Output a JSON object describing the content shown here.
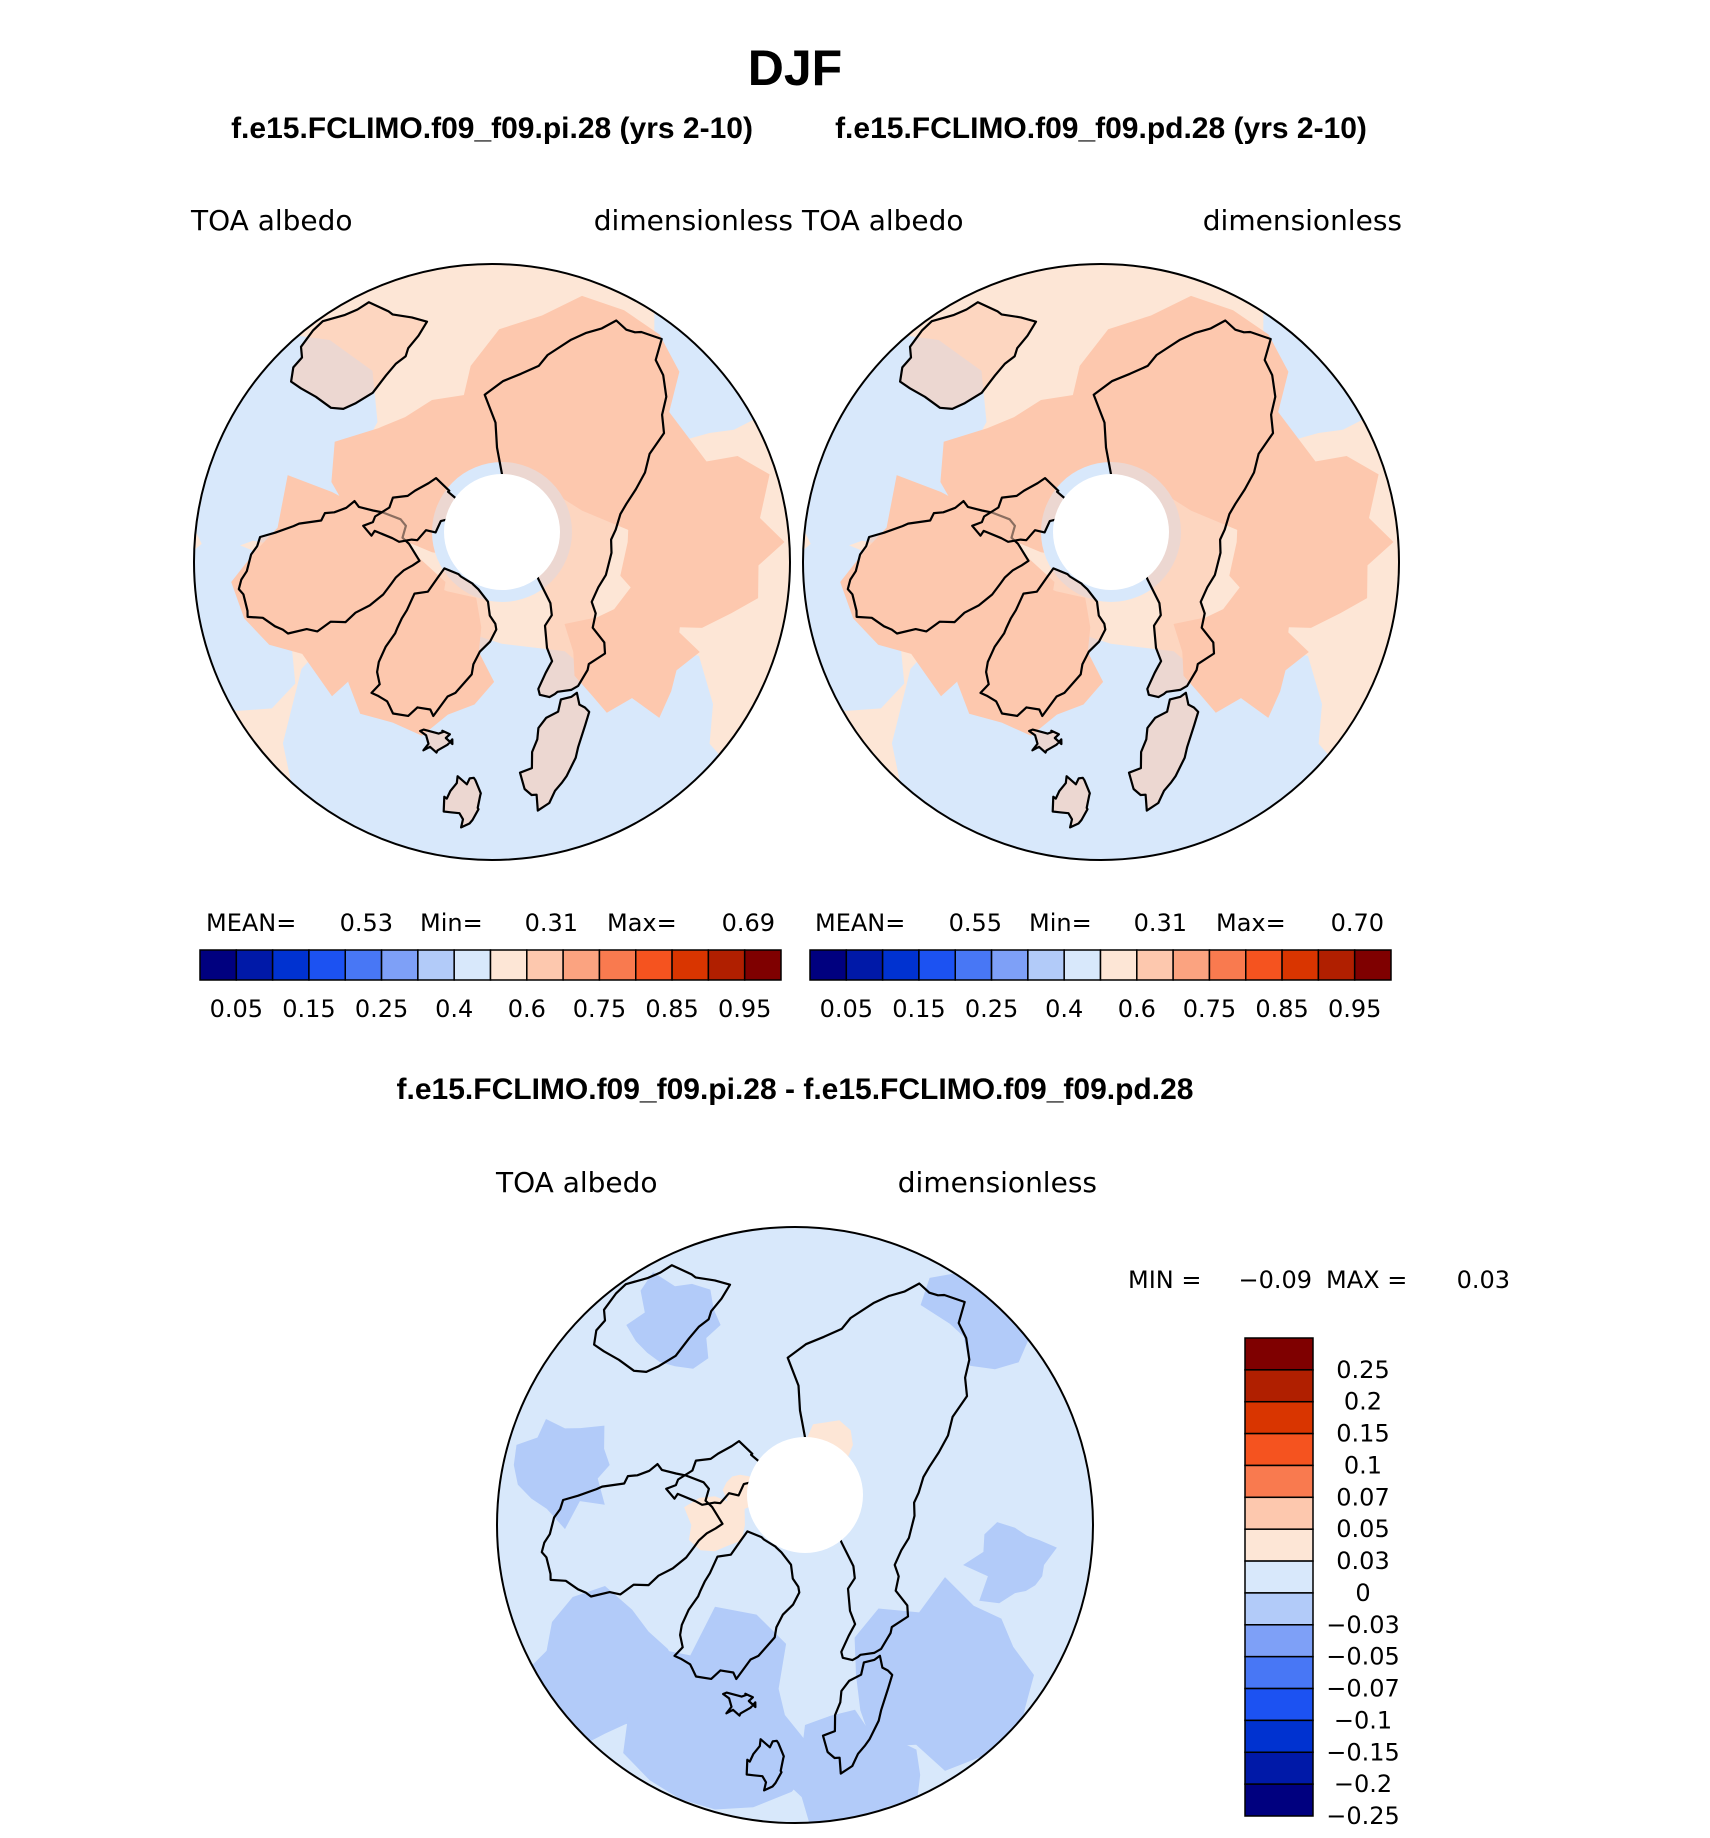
{
  "page": {
    "title": "DJF",
    "case_titles": [
      "f.e15.FCLIMO.f09_f09.pi.28 (yrs 2-10)",
      "f.e15.FCLIMO.f09_f09.pd.28 (yrs 2-10)"
    ],
    "diff_title": "f.e15.FCLIMO.f09_f09.pi.28 - f.e15.FCLIMO.f09_f09.pd.28"
  },
  "chart_data": [
    {
      "type": "heatmap",
      "projection": "north-polar-stereographic",
      "left_label": "TOA  albedo",
      "right_label": "dimensionless",
      "stats": {
        "mean_label": "MEAN=",
        "mean": "0.53",
        "min_label": "Min=",
        "min": "0.31",
        "max_label": "Max=",
        "max": "0.69"
      },
      "colorbar": {
        "orientation": "horizontal",
        "colors": [
          "#00007f",
          "#0019a8",
          "#0032d0",
          "#1c52f2",
          "#4877f5",
          "#7ea0f7",
          "#b2cbf9",
          "#d8e8fb",
          "#fde6d6",
          "#fdc8ae",
          "#fba380",
          "#f97a4f",
          "#f5531f",
          "#d93500",
          "#b01f00",
          "#7f0000"
        ],
        "tick_labels": [
          "0.05",
          "0.15",
          "0.25",
          "0.4",
          "0.6",
          "0.75",
          "0.85",
          "0.95"
        ]
      }
    },
    {
      "type": "heatmap",
      "projection": "north-polar-stereographic",
      "left_label": "TOA  albedo",
      "right_label": "dimensionless",
      "stats": {
        "mean_label": "MEAN=",
        "mean": "0.55",
        "min_label": "Min=",
        "min": "0.31",
        "max_label": "Max=",
        "max": "0.70"
      },
      "colorbar": {
        "orientation": "horizontal",
        "colors": [
          "#00007f",
          "#0019a8",
          "#0032d0",
          "#1c52f2",
          "#4877f5",
          "#7ea0f7",
          "#b2cbf9",
          "#d8e8fb",
          "#fde6d6",
          "#fdc8ae",
          "#fba380",
          "#f97a4f",
          "#f5531f",
          "#d93500",
          "#b01f00",
          "#7f0000"
        ],
        "tick_labels": [
          "0.05",
          "0.15",
          "0.25",
          "0.4",
          "0.6",
          "0.75",
          "0.85",
          "0.95"
        ]
      }
    },
    {
      "type": "heatmap",
      "projection": "north-polar-stereographic",
      "left_label": "TOA  albedo",
      "right_label": "dimensionless",
      "stats": {
        "min_label": "MIN =",
        "min": "−0.09",
        "max_label": "MAX =",
        "max": "0.03"
      },
      "colorbar": {
        "orientation": "vertical",
        "colors": [
          "#7f0000",
          "#b01f00",
          "#d93500",
          "#f5531f",
          "#f97a4f",
          "#fdc8ae",
          "#fde6d6",
          "#d8e8fb",
          "#b2cbf9",
          "#7ea0f7",
          "#4877f5",
          "#1c52f2",
          "#0032d0",
          "#0019a8",
          "#00007f"
        ],
        "tick_labels": [
          "0.25",
          "0.2",
          "0.15",
          "0.1",
          "0.07",
          "0.05",
          "0.03",
          "0",
          "−0.03",
          "−0.05",
          "−0.07",
          "−0.1",
          "−0.15",
          "−0.2",
          "−0.25"
        ]
      }
    }
  ]
}
